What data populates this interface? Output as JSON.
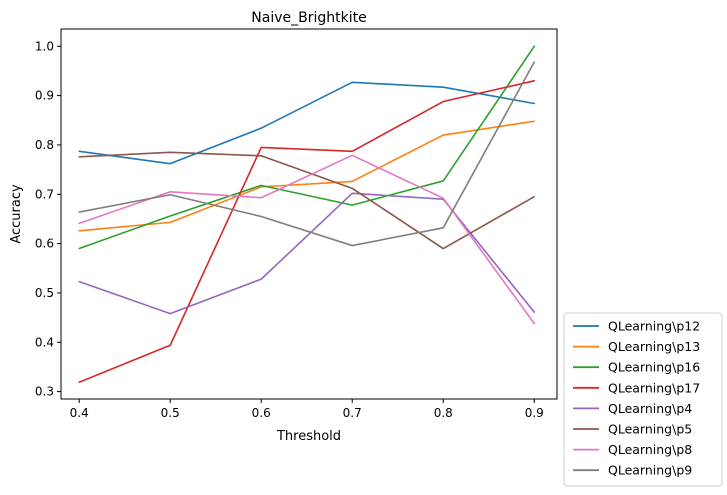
{
  "chart_data": {
    "type": "line",
    "title": "Naive_Brightkite",
    "xlabel": "Threshold",
    "ylabel": "Accuracy",
    "x": [
      0.4,
      0.5,
      0.6,
      0.7,
      0.8,
      0.9
    ],
    "xticks": [
      "0.4",
      "0.5",
      "0.6",
      "0.7",
      "0.8",
      "0.9"
    ],
    "yticks": [
      "0.3",
      "0.4",
      "0.5",
      "0.6",
      "0.7",
      "0.8",
      "0.9",
      "1.0"
    ],
    "xlim": [
      0.38,
      0.925
    ],
    "ylim": [
      0.285,
      1.035
    ],
    "legend_position": "outside-bottom-right",
    "grid": false,
    "series": [
      {
        "name": "QLearning\\p12",
        "color": "#1f77b4",
        "values": [
          0.787,
          0.762,
          0.834,
          0.927,
          0.917,
          0.884
        ]
      },
      {
        "name": "QLearning\\p13",
        "color": "#ff7f0e",
        "values": [
          0.626,
          0.643,
          0.715,
          0.726,
          0.82,
          0.848
        ]
      },
      {
        "name": "QLearning\\p16",
        "color": "#2ca02c",
        "values": [
          0.59,
          0.656,
          0.718,
          0.678,
          0.727,
          1.0
        ]
      },
      {
        "name": "QLearning\\p17",
        "color": "#d62728",
        "values": [
          0.319,
          0.394,
          0.795,
          0.787,
          0.888,
          0.93
        ]
      },
      {
        "name": "QLearning\\p4",
        "color": "#9467bd",
        "values": [
          0.523,
          0.458,
          0.528,
          0.702,
          0.69,
          0.461
        ]
      },
      {
        "name": "QLearning\\p5",
        "color": "#8c564b",
        "values": [
          0.776,
          0.785,
          0.778,
          0.712,
          0.59,
          0.695
        ]
      },
      {
        "name": "QLearning\\p8",
        "color": "#e377c2",
        "values": [
          0.641,
          0.705,
          0.693,
          0.779,
          0.692,
          0.438
        ]
      },
      {
        "name": "QLearning\\p9",
        "color": "#7f7f7f",
        "values": [
          0.664,
          0.699,
          0.655,
          0.596,
          0.632,
          0.968
        ]
      }
    ]
  }
}
